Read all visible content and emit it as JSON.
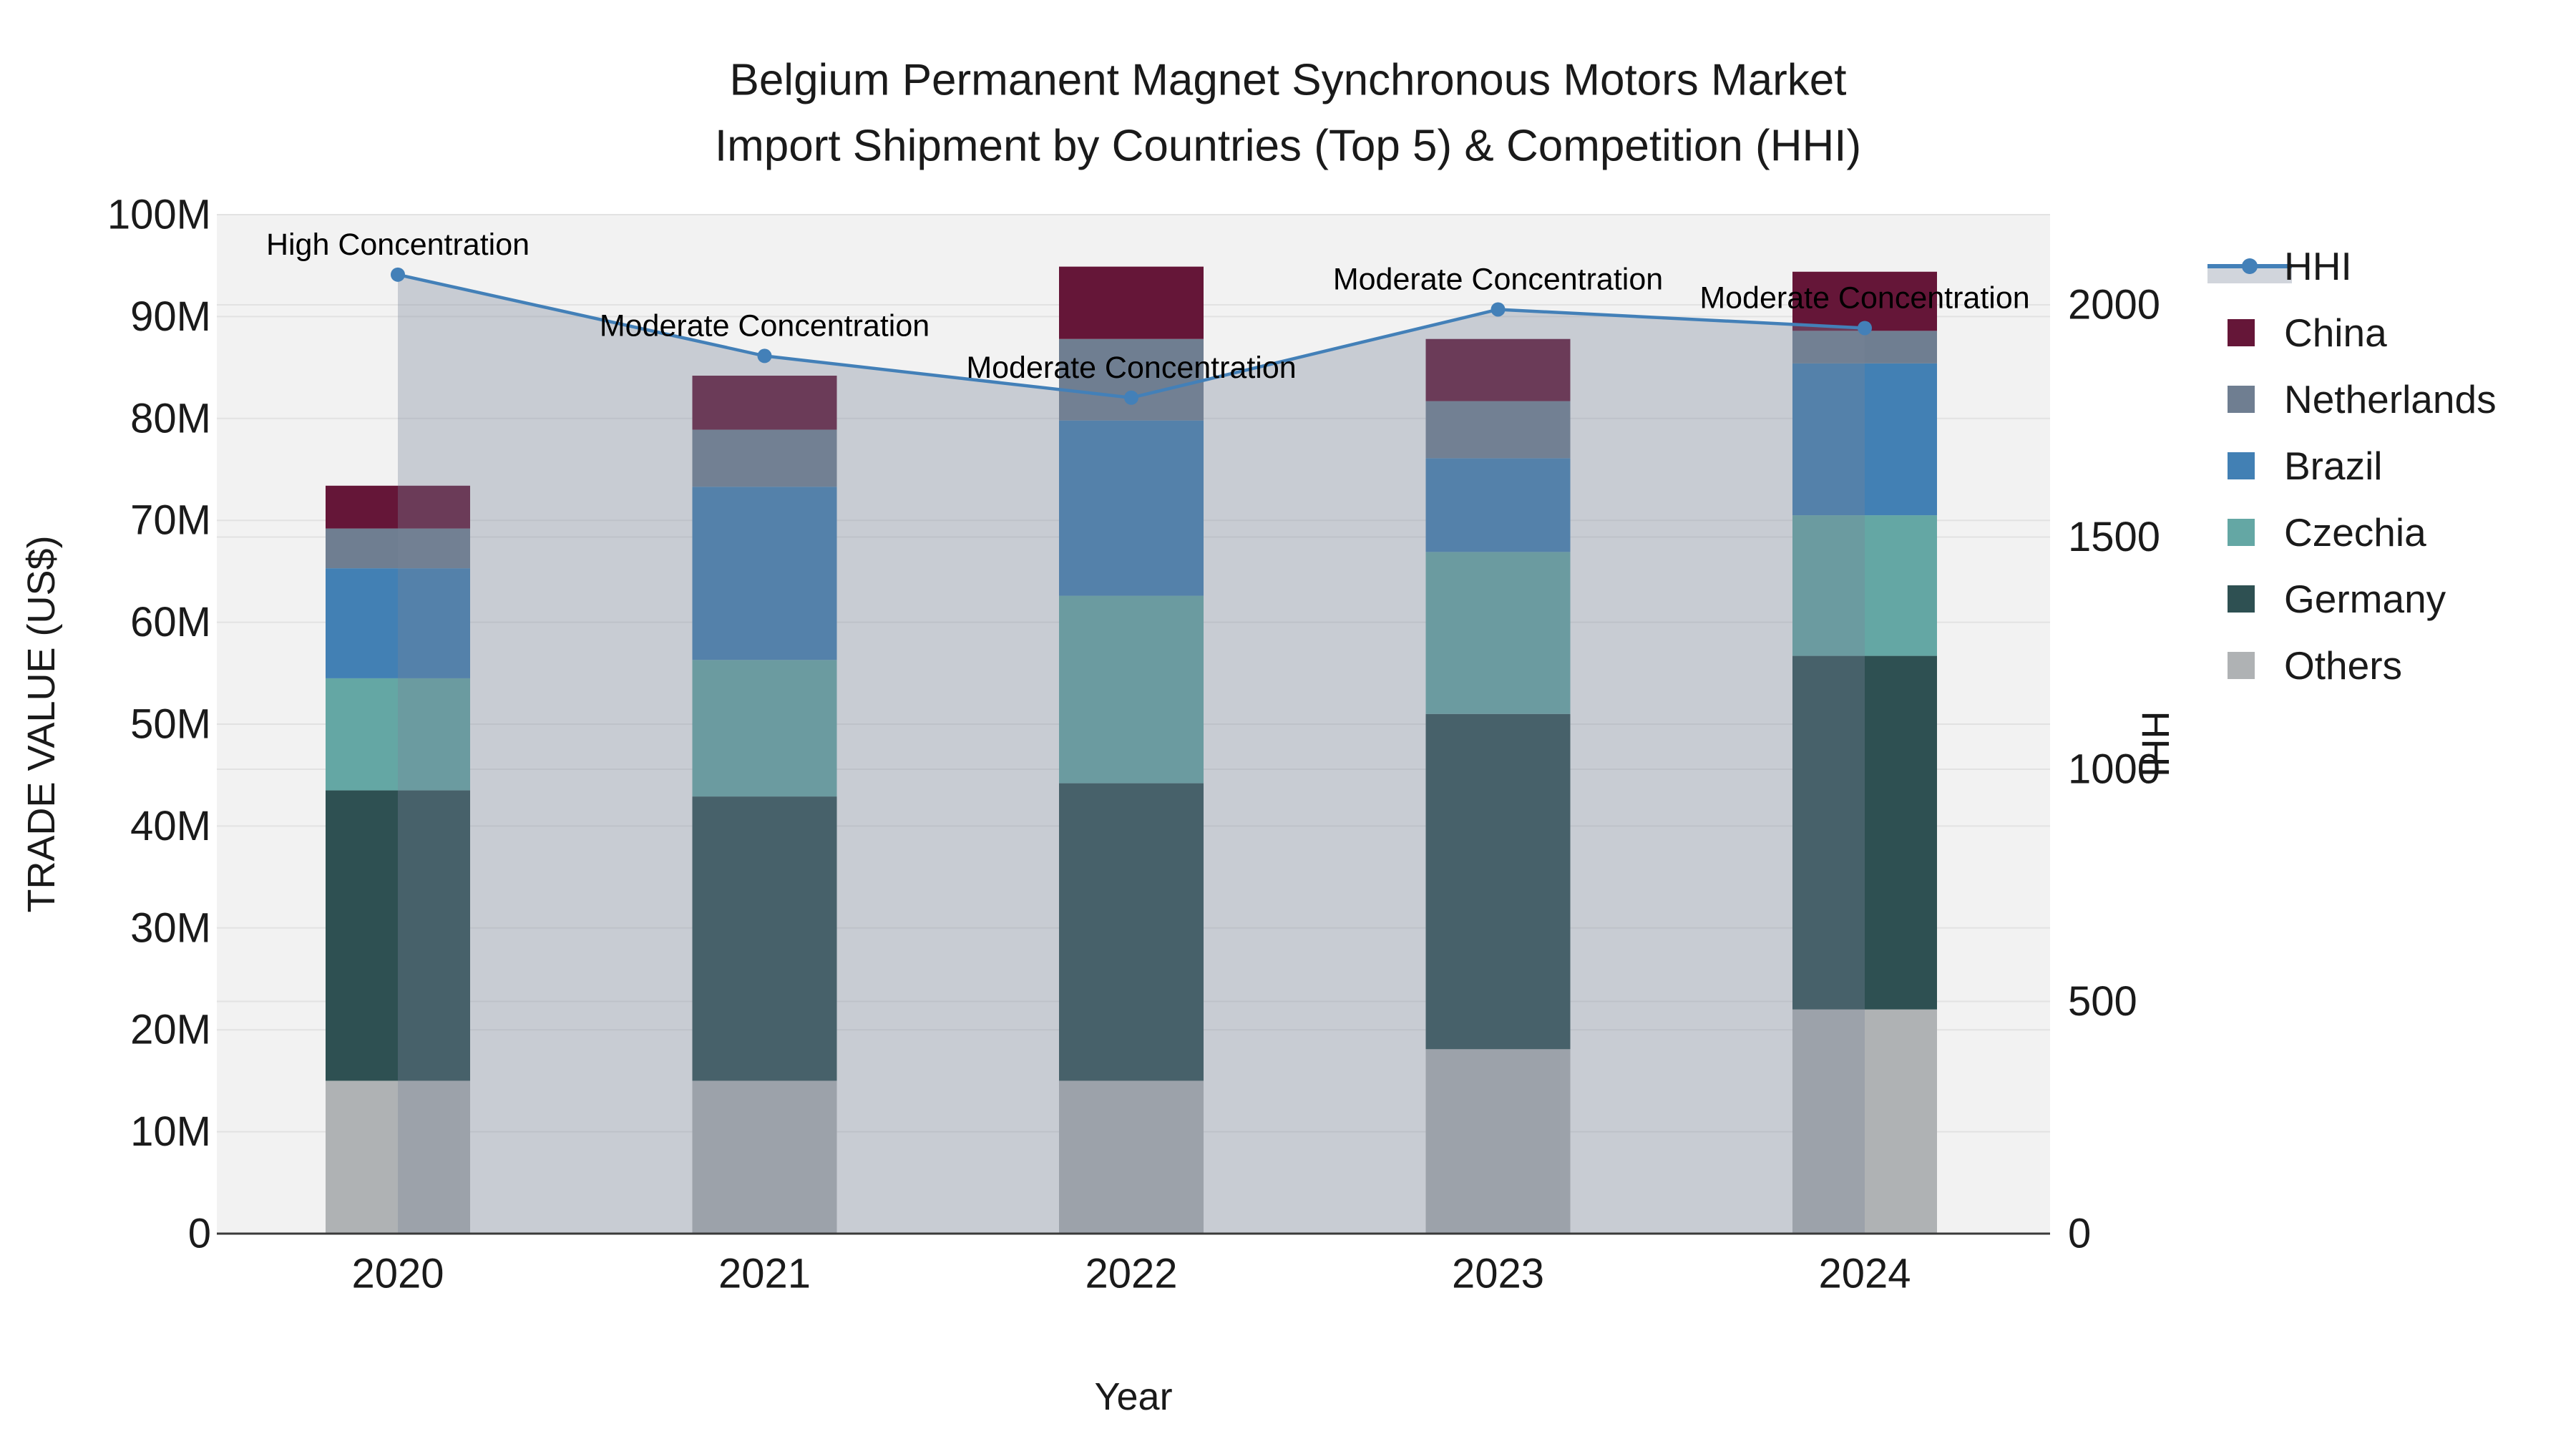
{
  "title": {
    "line1": "Belgium Permanent Magnet Synchronous Motors Market",
    "line2": "Import Shipment by Countries (Top 5) & Competition (HHI)"
  },
  "axes": {
    "x": {
      "label": "Year",
      "tick_labels": [
        "2020",
        "2021",
        "2022",
        "2023",
        "2024"
      ]
    },
    "y_left": {
      "label": "TRADE VALUE (US$)",
      "tick_labels": [
        "0",
        "10M",
        "20M",
        "30M",
        "40M",
        "50M",
        "60M",
        "70M",
        "80M",
        "90M",
        "100M"
      ],
      "tick_values": [
        0,
        10,
        20,
        30,
        40,
        50,
        60,
        70,
        80,
        90,
        100
      ],
      "range": [
        0,
        100
      ]
    },
    "y_right": {
      "label": "HHI",
      "tick_labels": [
        "0",
        "500",
        "1000",
        "1500",
        "2000"
      ],
      "tick_values": [
        0,
        500,
        1000,
        1500,
        2000
      ],
      "range": [
        0,
        2194
      ]
    }
  },
  "chart_data": {
    "type": "bar",
    "stacked": true,
    "categories": [
      "2020",
      "2021",
      "2022",
      "2023",
      "2024"
    ],
    "series": [
      {
        "name": "Others",
        "color": "#afb2b4",
        "values": [
          15.0,
          15.0,
          15.0,
          18.1,
          22.0
        ]
      },
      {
        "name": "Germany",
        "color": "#2e5052",
        "values": [
          28.5,
          27.9,
          29.2,
          32.9,
          34.7
        ]
      },
      {
        "name": "Czechia",
        "color": "#64a7a4",
        "values": [
          11.0,
          13.4,
          18.4,
          15.9,
          13.8
        ]
      },
      {
        "name": "Brazil",
        "color": "#4280b4",
        "values": [
          10.8,
          17.0,
          17.2,
          9.2,
          14.9
        ]
      },
      {
        "name": "Netherlands",
        "color": "#6f7e91",
        "values": [
          3.9,
          5.6,
          8.0,
          5.6,
          3.2
        ]
      },
      {
        "name": "China",
        "color": "#651638",
        "values": [
          4.2,
          5.3,
          7.1,
          6.1,
          5.8
        ]
      }
    ],
    "bar_totals": [
      73.4,
      84.2,
      94.9,
      87.8,
      94.4
    ],
    "line_series": {
      "name": "HHI",
      "axis": "right",
      "color": "#4380b8",
      "area_fill": "rgba(120,132,153,0.34)",
      "values": [
        2065,
        1890,
        1800,
        1990,
        1950
      ]
    },
    "annotations": [
      {
        "year": "2020",
        "text": "High Concentration"
      },
      {
        "year": "2021",
        "text": "Moderate Concentration"
      },
      {
        "year": "2022",
        "text": "Moderate Concentration"
      },
      {
        "year": "2023",
        "text": "Moderate Concentration"
      },
      {
        "year": "2024",
        "text": "Moderate Concentration"
      }
    ],
    "title": "Belgium Permanent Magnet Synchronous Motors Market Import Shipment by Countries (Top 5) & Competition (HHI)",
    "xlabel": "Year",
    "ylabel_left": "TRADE VALUE (US$)",
    "ylabel_right": "HHI",
    "legend_position": "right",
    "grid": true
  },
  "legend": {
    "items": [
      {
        "label": "HHI",
        "type": "line",
        "color": "#4380b8"
      },
      {
        "label": "China",
        "type": "swatch",
        "color": "#651638"
      },
      {
        "label": "Netherlands",
        "type": "swatch",
        "color": "#6f7e91"
      },
      {
        "label": "Brazil",
        "type": "swatch",
        "color": "#4280b4"
      },
      {
        "label": "Czechia",
        "type": "swatch",
        "color": "#64a7a4"
      },
      {
        "label": "Germany",
        "type": "swatch",
        "color": "#2e5052"
      },
      {
        "label": "Others",
        "type": "swatch",
        "color": "#afb2b4"
      }
    ]
  },
  "colors": {
    "paper_bg": "#ffffff",
    "plot_bg": "#f2f2f2",
    "grid": "#e2e2e2",
    "axis_line": "#3a3a3a",
    "text": "#1a1a1a",
    "hhi_line": "#4380b8",
    "area_overlay": "rgba(120,132,153,0.34)"
  }
}
